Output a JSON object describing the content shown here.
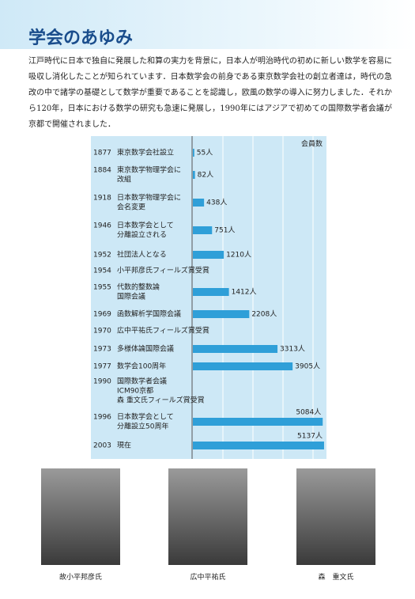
{
  "header": {
    "title": "学会のあゆみ"
  },
  "intro": "江戸時代に日本で独自に発展した和算の実力を背景に，日本人が明治時代の初めに新しい数学を容易に吸収し消化したことが知られています．日本数学会の前身である東京数学会社の創立者達は，時代の急改の中で諸学の基礎として数学が重要であることを認識し，欧風の数学の導入に努力しました．それから120年，日本における数学の研究も急速に発展し，1990年にはアジアで初めての国際数学者会議が京都で開催されました．",
  "chart_data": {
    "type": "bar",
    "orientation": "horizontal",
    "axis_label": "会員数",
    "color": "#2f9fd8",
    "xlim": [
      0,
      5200
    ],
    "categories": [
      "1877",
      "1884",
      "1918",
      "1946",
      "1952",
      "1954",
      "1955",
      "1969",
      "1970",
      "1973",
      "1977",
      "1990",
      "1996",
      "2003"
    ],
    "events": [
      [
        "東京数学会社設立"
      ],
      [
        "東京数学物理学会に",
        "改組"
      ],
      [
        "日本数学物理学会に",
        "会名変更"
      ],
      [
        "日本数学会として",
        "分離設立される"
      ],
      [
        "社団法人となる"
      ],
      [
        "小平邦彦氏フィールズ賞受賞"
      ],
      [
        "代数的整数論",
        "国際会議"
      ],
      [
        "函数解析学国際会議"
      ],
      [
        "広中平祐氏フィールズ賞受賞"
      ],
      [
        "多様体論国際会議"
      ],
      [
        "数学会100周年"
      ],
      [
        "国際数学者会議",
        "ICM90京都",
        "森 重文氏フィールズ賞受賞"
      ],
      [
        "日本数学会として",
        "分離設立50周年"
      ],
      [
        "現在"
      ]
    ],
    "values": [
      55,
      82,
      438,
      751,
      1210,
      null,
      1412,
      2208,
      null,
      3313,
      3905,
      null,
      5084,
      5137
    ],
    "value_labels": [
      "55人",
      "82人",
      "438人",
      "751人",
      "1210人",
      null,
      "1412人",
      "2208人",
      null,
      "3313人",
      "3905人",
      null,
      "5084人",
      "5137人"
    ]
  },
  "photos": [
    {
      "caption": "故小平邦彦氏"
    },
    {
      "caption": "広中平祐氏"
    },
    {
      "caption": "森　重文氏"
    }
  ]
}
